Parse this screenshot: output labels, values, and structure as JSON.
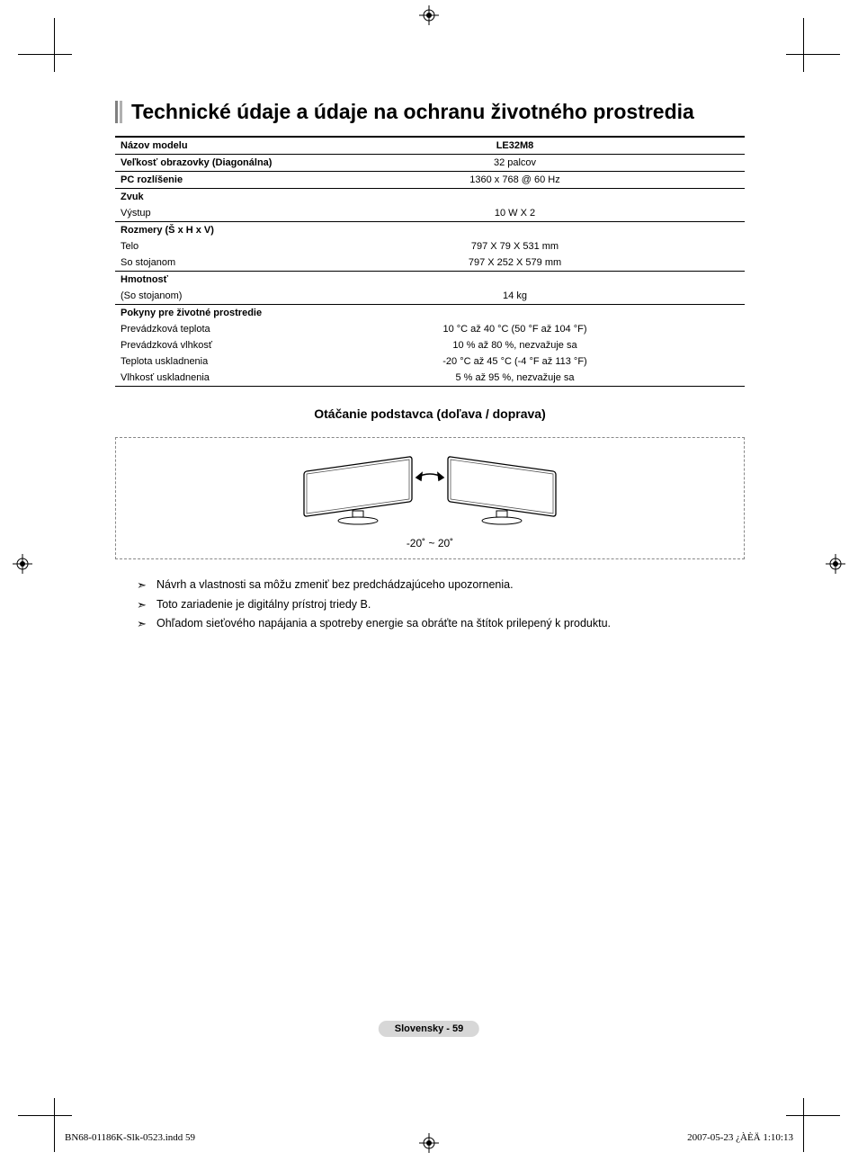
{
  "title": "Technické údaje a údaje na ochranu životného prostredia",
  "table": {
    "header_label": "Názov modelu",
    "header_value": "LE32M8",
    "rows": [
      {
        "label": "Veľkosť obrazovky (Diagonálna)",
        "value": "32 palcov",
        "bold_label": true,
        "top_line": true
      },
      {
        "label": "PC rozlíšenie",
        "value": "1360 x 768 @ 60 Hz",
        "bold_label": true,
        "top_line": true
      },
      {
        "label": "Zvuk",
        "value": "",
        "bold_label": true,
        "top_line": true
      },
      {
        "label": "Výstup",
        "value": "10 W X 2",
        "bold_label": false
      },
      {
        "label": "Rozmery (Š x H x V)",
        "value": "",
        "bold_label": true,
        "top_line": true
      },
      {
        "label": "Telo",
        "value": "797 X 79 X 531 mm",
        "bold_label": false
      },
      {
        "label": "So stojanom",
        "value": "797 X 252 X 579 mm",
        "bold_label": false
      },
      {
        "label": "Hmotnosť",
        "value": "",
        "bold_label": true,
        "top_line": true
      },
      {
        "label": "(So stojanom)",
        "value": "14 kg",
        "bold_label": false
      },
      {
        "label": "Pokyny pre životné prostredie",
        "value": "",
        "bold_label": true,
        "top_line": true
      },
      {
        "label": "Prevádzková teplota",
        "value": "10 °C až 40 °C (50 °F až 104 °F)",
        "bold_label": false
      },
      {
        "label": "Prevádzková vlhkosť",
        "value": "10 % až 80 %, nezvažuje sa",
        "bold_label": false
      },
      {
        "label": "Teplota uskladnenia",
        "value": "-20 °C až 45 °C (-4 °F až 113 °F)",
        "bold_label": false
      },
      {
        "label": "Vlhkosť uskladnenia",
        "value": "5 % až 95 %, nezvažuje sa",
        "bold_label": false,
        "bottom_line": true
      }
    ]
  },
  "swivel": {
    "title": "Otáčanie podstavca (doľava / doprava)",
    "range": "-20˚ ~ 20˚"
  },
  "notes": [
    "Návrh a vlastnosti sa môžu zmeniť bez predchádzajúceho upozornenia.",
    "Toto zariadenie je digitálny prístroj triedy B.",
    "Ohľadom sieťového napájania a spotreby energie sa obráťte na štítok prilepený k produktu."
  ],
  "footer": {
    "page_badge": "Slovensky - 59",
    "impo_left": "BN68-01186K-Slk-0523.indd   59",
    "impo_right": "2007-05-23   ¿ÀÈÄ 1:10:13"
  },
  "colors": {
    "accent1": "#808080",
    "accent2": "#b0b0b0",
    "badge_bg": "#d7d7d7",
    "dash_border": "#888888"
  }
}
